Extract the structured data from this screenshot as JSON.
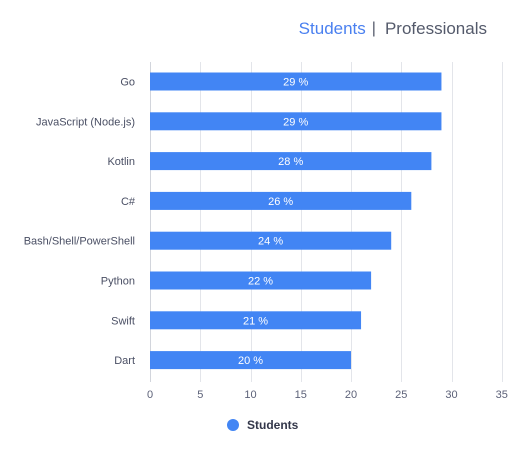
{
  "toggle": {
    "active_label": "Students",
    "separator": "|",
    "inactive_label": "Professionals"
  },
  "colors": {
    "bar": "#4285f4",
    "accent": "#4a80f0",
    "category_text": "#4a4f64",
    "tick_text": "#5c6178",
    "grid": "#e3e5ea",
    "bar_label": "#ffffff"
  },
  "chart_data": {
    "type": "bar",
    "orientation": "horizontal",
    "categories": [
      "Go",
      "JavaScript (Node.js)",
      "Kotlin",
      "C#",
      "Bash/Shell/PowerShell",
      "Python",
      "Swift",
      "Dart"
    ],
    "series": [
      {
        "name": "Students",
        "values": [
          29,
          29,
          28,
          26,
          24,
          22,
          21,
          20
        ],
        "labels": [
          "29 %",
          "29 %",
          "28 %",
          "26 %",
          "24 %",
          "22 %",
          "21 %",
          "20 %"
        ]
      }
    ],
    "xlim": [
      0,
      35
    ],
    "xticks": [
      0,
      5,
      10,
      15,
      20,
      25,
      30,
      35
    ],
    "grid": true,
    "legend_position": "bottom-center"
  }
}
